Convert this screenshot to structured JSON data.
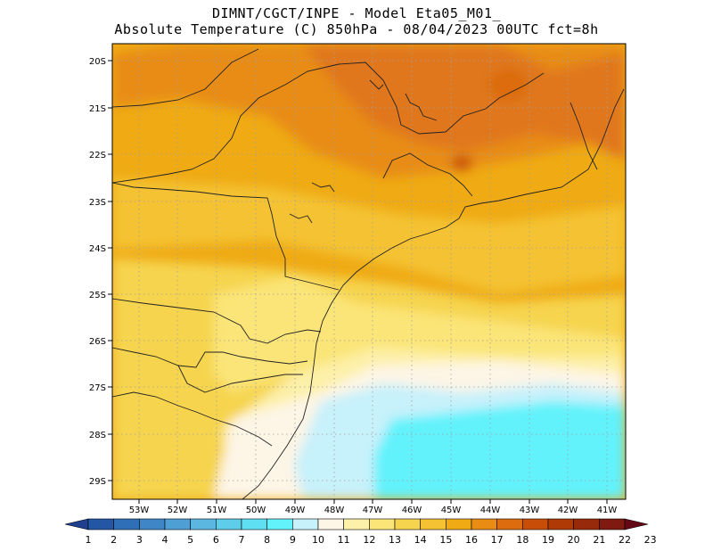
{
  "title": {
    "line1": "DIMNT/CGCT/INPE -  Model Eta05_M01_",
    "line2": "Absolute Temperature (C) 850hPa -  08/04/2023 00UTC fct=8h"
  },
  "lat_labels": [
    "20S",
    "21S",
    "22S",
    "23S",
    "24S",
    "25S",
    "26S",
    "27S",
    "28S",
    "29S"
  ],
  "lon_labels": [
    "53W",
    "52W",
    "51W",
    "50W",
    "49W",
    "48W",
    "47W",
    "46W",
    "45W",
    "44W",
    "43W",
    "42W",
    "41W"
  ],
  "colorbar": {
    "labels": [
      "1",
      "2",
      "3",
      "4",
      "5",
      "6",
      "7",
      "8",
      "9",
      "10",
      "11",
      "12",
      "13",
      "14",
      "15",
      "16",
      "17",
      "18",
      "19",
      "20",
      "21",
      "22",
      "23"
    ],
    "colors": [
      "#1f3f8f",
      "#2456a6",
      "#2f6fb8",
      "#3f86c6",
      "#4ea0d4",
      "#5cb7e0",
      "#5dcdea",
      "#5fe0f2",
      "#62f2fb",
      "#c7f1fb",
      "#fdf5e6",
      "#fdf0a8",
      "#fbe578",
      "#f6d44e",
      "#f4c232",
      "#efaa14",
      "#e88c13",
      "#dc6c0d",
      "#c84e08",
      "#b03a06",
      "#962a0a",
      "#7e1a10",
      "#640815"
    ]
  },
  "chart_data": {
    "type": "heatmap",
    "title": "DIMNT/CGCT/INPE -  Model Eta05_M01_ / Absolute Temperature (C) 850hPa -  08/04/2023 00UTC fct=8h",
    "variable": "Absolute Temperature (C) 850hPa",
    "model": "Eta05_M01_",
    "run": "08/04/2023 00UTC",
    "forecast": "fct=8h",
    "lon_range": [
      -53.8,
      -40.6
    ],
    "lat_range": [
      -29.4,
      -19.8
    ],
    "color_range": [
      1,
      23
    ],
    "regions": [
      {
        "region": "north interior (20S-22S, 46W-43W)",
        "temperature_C": 19
      },
      {
        "region": "north (20S-23S)",
        "temperature_C": 17
      },
      {
        "region": "central (23S-25S)",
        "temperature_C": 16
      },
      {
        "region": "west interior (25S-28S, 53W-51W)",
        "temperature_C": 16
      },
      {
        "region": "coast near 26S-27S",
        "temperature_C": 13
      },
      {
        "region": "south coast (28S-29S, 50W-48W)",
        "temperature_C": 11
      },
      {
        "region": "ocean (27S-29S, 47W-41W)",
        "temperature_C": 9
      }
    ],
    "grid": true,
    "legend": "bottom"
  }
}
